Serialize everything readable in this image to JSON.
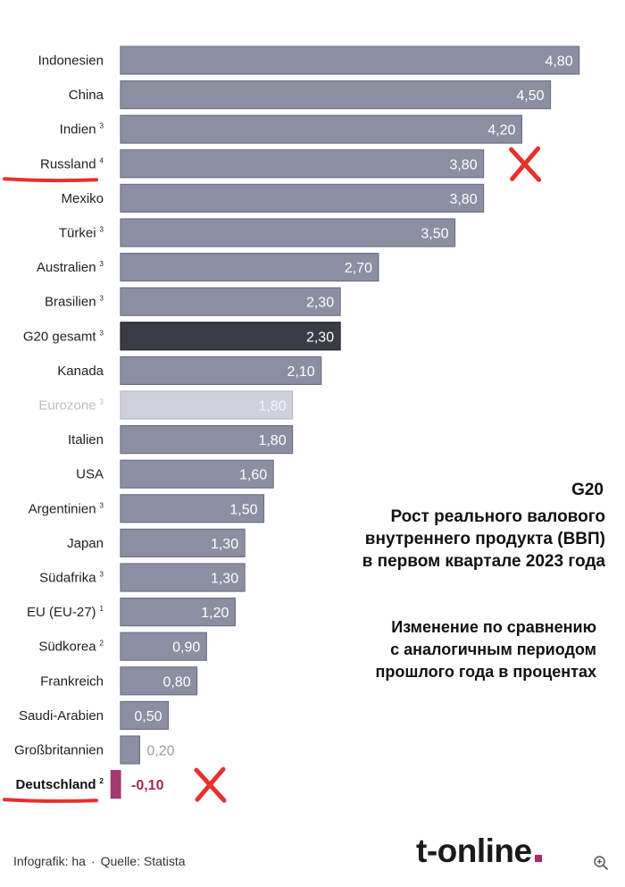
{
  "chart_data": {
    "type": "bar",
    "orientation": "horizontal",
    "categories": [
      {
        "label": "Indonesien",
        "sup": "",
        "value": 4.8,
        "value_label": "4,80",
        "style": "normal"
      },
      {
        "label": "China",
        "sup": "",
        "value": 4.5,
        "value_label": "4,50",
        "style": "normal"
      },
      {
        "label": "Indien",
        "sup": "3",
        "value": 4.2,
        "value_label": "4,20",
        "style": "normal"
      },
      {
        "label": "Russland",
        "sup": "4",
        "value": 3.8,
        "value_label": "3,80",
        "style": "normal"
      },
      {
        "label": "Mexiko",
        "sup": "",
        "value": 3.8,
        "value_label": "3,80",
        "style": "normal"
      },
      {
        "label": "Türkei",
        "sup": "3",
        "value": 3.5,
        "value_label": "3,50",
        "style": "normal"
      },
      {
        "label": "Australien",
        "sup": "3",
        "value": 2.7,
        "value_label": "2,70",
        "style": "normal"
      },
      {
        "label": "Brasilien",
        "sup": "3",
        "value": 2.3,
        "value_label": "2,30",
        "style": "normal"
      },
      {
        "label": "G20 gesamt",
        "sup": "3",
        "value": 2.3,
        "value_label": "2,30",
        "style": "total"
      },
      {
        "label": "Kanada",
        "sup": "",
        "value": 2.1,
        "value_label": "2,10",
        "style": "normal"
      },
      {
        "label": "Eurozone",
        "sup": "3",
        "value": 1.8,
        "value_label": "1,80",
        "style": "muted"
      },
      {
        "label": "Italien",
        "sup": "",
        "value": 1.8,
        "value_label": "1,80",
        "style": "normal"
      },
      {
        "label": "USA",
        "sup": "",
        "value": 1.6,
        "value_label": "1,60",
        "style": "normal"
      },
      {
        "label": "Argentinien",
        "sup": "3",
        "value": 1.5,
        "value_label": "1,50",
        "style": "normal"
      },
      {
        "label": "Japan",
        "sup": "",
        "value": 1.3,
        "value_label": "1,30",
        "style": "normal"
      },
      {
        "label": "Südafrika",
        "sup": "3",
        "value": 1.3,
        "value_label": "1,30",
        "style": "normal"
      },
      {
        "label": "EU (EU-27)",
        "sup": "1",
        "value": 1.2,
        "value_label": "1,20",
        "style": "normal"
      },
      {
        "label": "Südkorea",
        "sup": "2",
        "value": 0.9,
        "value_label": "0,90",
        "style": "normal"
      },
      {
        "label": "Frankreich",
        "sup": "",
        "value": 0.8,
        "value_label": "0,80",
        "style": "normal"
      },
      {
        "label": "Saudi-Arabien",
        "sup": "",
        "value": 0.5,
        "value_label": "0,50",
        "style": "normal"
      },
      {
        "label": "Großbritannien",
        "sup": "",
        "value": 0.2,
        "value_label": "0,20",
        "style": "normal"
      },
      {
        "label": "Deutschland",
        "sup": "2",
        "value": -0.1,
        "value_label": "-0,10",
        "style": "negative"
      }
    ],
    "unit": "%",
    "xlim": [
      -0.1,
      4.8
    ],
    "grid": false,
    "legend": "none",
    "colors": {
      "bar": "#8c8fa1",
      "bar_edge": "#6e7184",
      "total": "#3a3b46",
      "muted": "#cfd2dc",
      "negative": "#a33a6d",
      "highlight_mark": "#e8302c"
    }
  },
  "annotation": {
    "g20": "G20",
    "title_lines": [
      "Рост реального валового",
      "внутреннего продукта (ВВП)",
      "в первом квартале 2023 года"
    ],
    "subtitle_lines": [
      "Изменение по сравнению",
      "с аналогичным периодом",
      "прошлого года в процентах"
    ]
  },
  "footer": {
    "credit": "Infografik: ha",
    "separator": "·",
    "source": "Quelle: Statista",
    "brand": "t-online"
  },
  "icons": {
    "zoom": "zoom-in-icon",
    "cross": "red-cross-mark-icon",
    "underline": "red-underline-mark"
  },
  "highlighted_categories": [
    "Russland",
    "Deutschland"
  ]
}
